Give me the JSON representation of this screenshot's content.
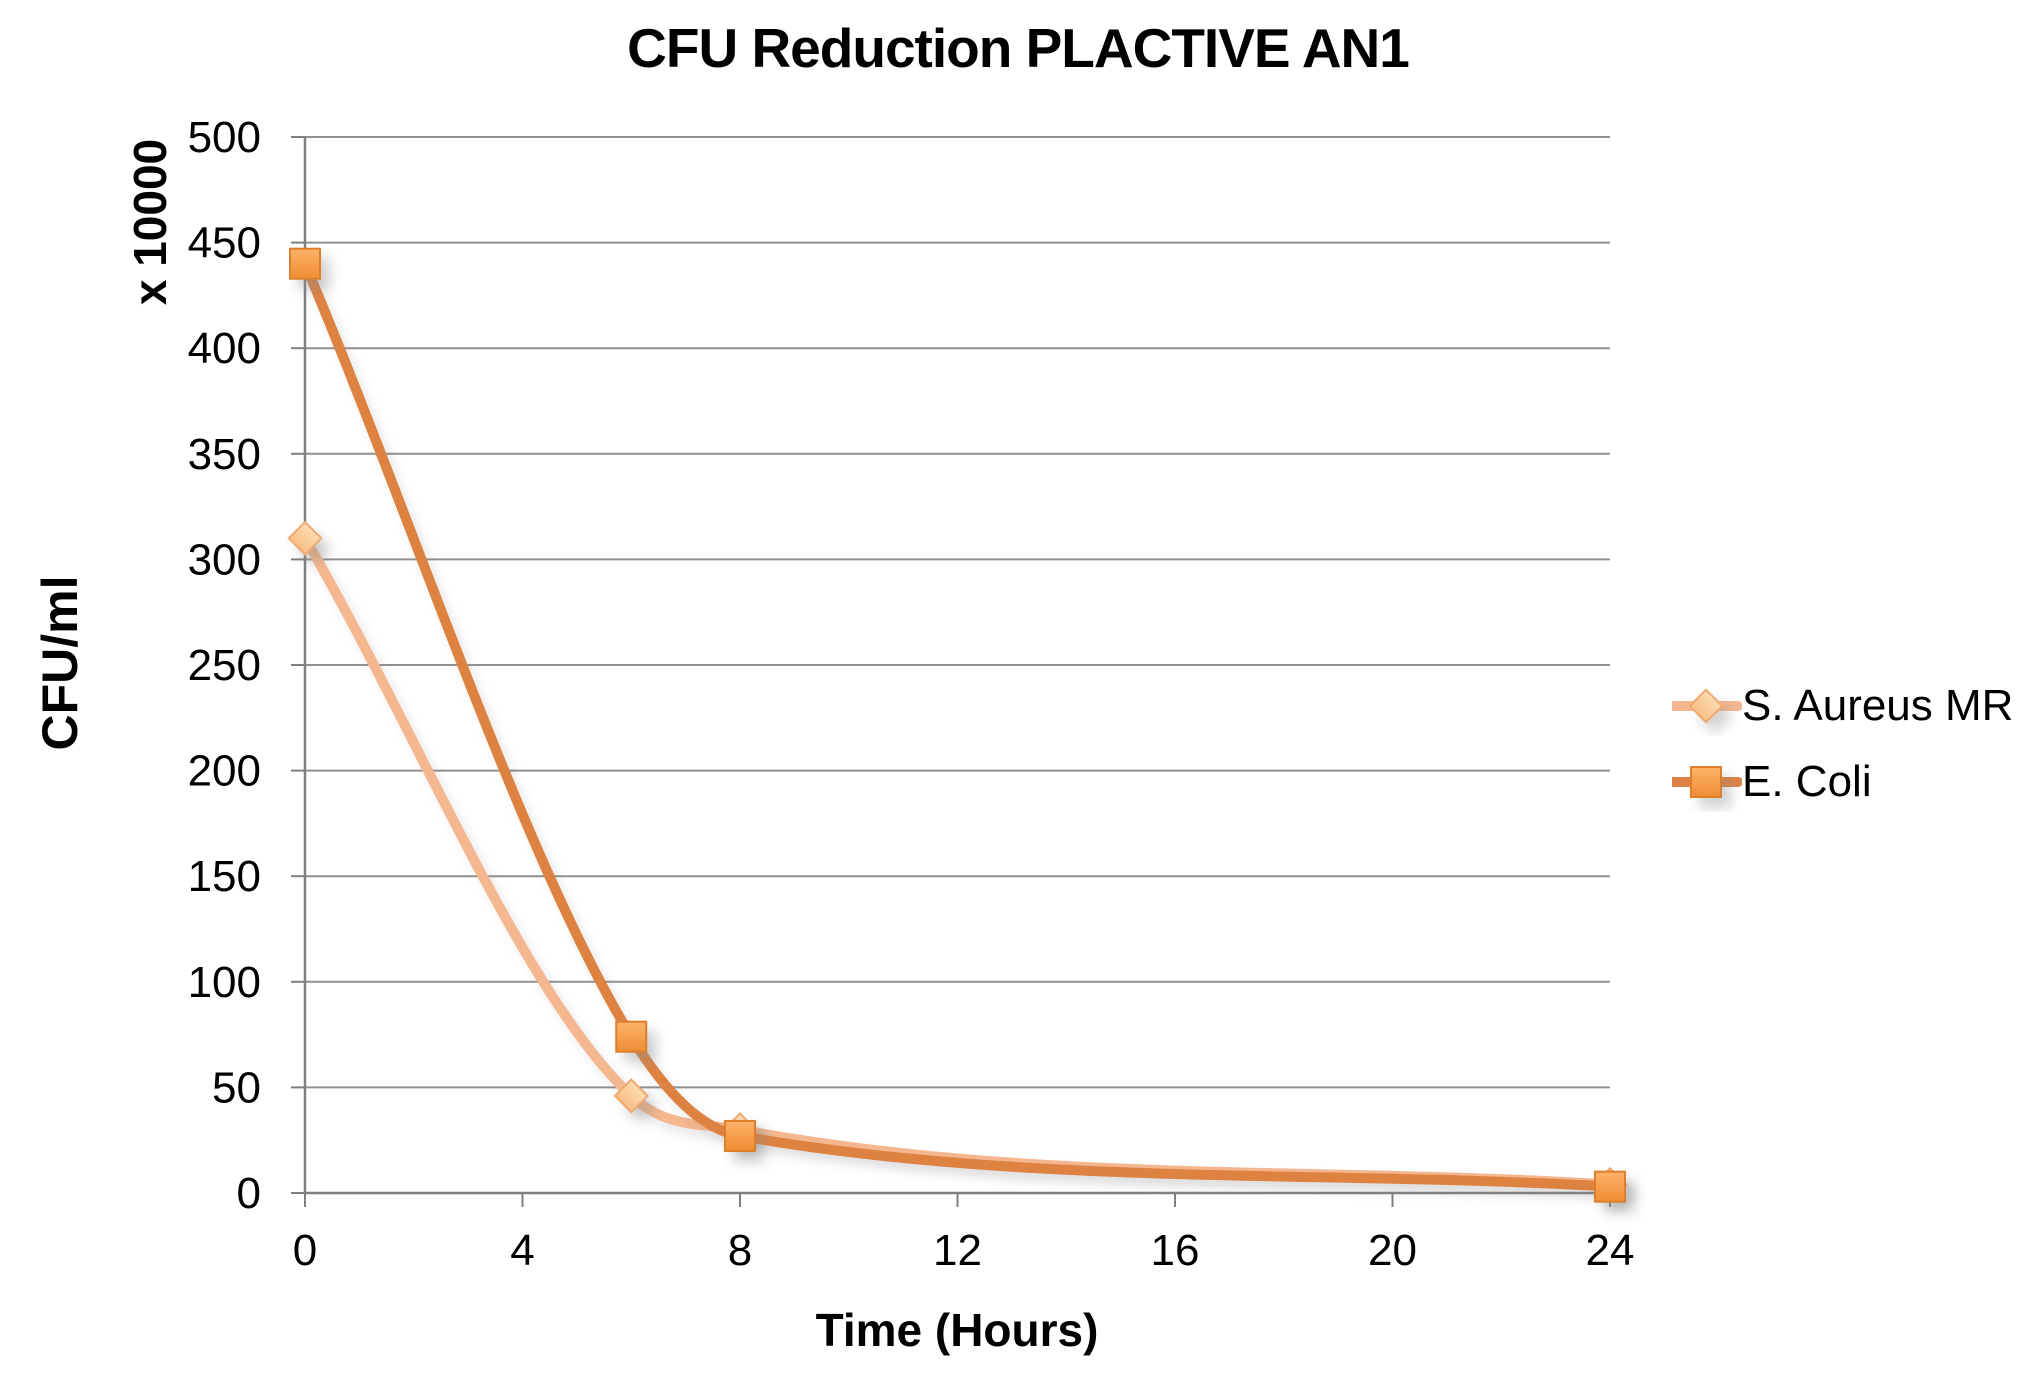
{
  "chart_data": {
    "type": "line",
    "title": "CFU Reduction PLACTIVE AN1",
    "xlabel": "Time (Hours)",
    "ylabel": "CFU/ml",
    "y_unit_label": "x 10000",
    "xlim": [
      0,
      24
    ],
    "ylim": [
      0,
      500
    ],
    "x_ticks": [
      0,
      4,
      8,
      12,
      16,
      20,
      24
    ],
    "y_ticks": [
      0,
      50,
      100,
      150,
      200,
      250,
      300,
      350,
      400,
      450,
      500
    ],
    "grid": true,
    "line_smoothing": true,
    "legend_position": "right",
    "series": [
      {
        "name": "S. Aureus MR",
        "marker": "diamond",
        "x": [
          0,
          6,
          8,
          24
        ],
        "values": [
          310,
          46,
          30,
          4
        ],
        "line_color": "#F5B78F",
        "marker_fill_top": "#FDDCB4",
        "marker_fill_bottom": "#F8BD85",
        "marker_stroke": "#F0A96E"
      },
      {
        "name": "E. Coli",
        "marker": "square",
        "x": [
          0,
          6,
          8,
          24
        ],
        "values": [
          440,
          74,
          27,
          3
        ],
        "line_color": "#DE8243",
        "marker_fill_top": "#FCB369",
        "marker_fill_bottom": "#EF8D33",
        "marker_stroke": "#DD7E2C"
      }
    ]
  },
  "colors": {
    "gridline": "#909090",
    "axis": "#7F7F7F",
    "tick_text": "#000000"
  }
}
